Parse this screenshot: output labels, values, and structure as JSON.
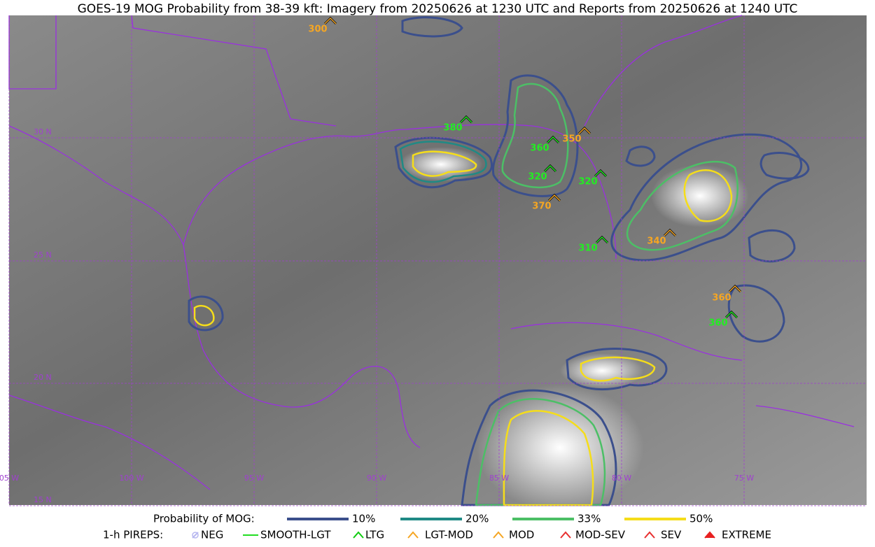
{
  "title": "GOES-19 MOG Probability from 38-39 kft: Imagery from 20250626 at 1230 UTC and Reports from 20250626 at 1240 UTC",
  "lat_labels": [
    "30 N",
    "25 N",
    "20 N",
    "15 N"
  ],
  "lon_labels": [
    "05 W",
    "100 W",
    "95 W",
    "90 W",
    "85 W",
    "80 W",
    "75 W"
  ],
  "reports": [
    {
      "text": "300",
      "color": "#f5a623"
    },
    {
      "text": "380",
      "color": "#22ee22"
    },
    {
      "text": "350",
      "color": "#f5a623"
    },
    {
      "text": "360",
      "color": "#22ee22"
    },
    {
      "text": "320",
      "color": "#22ee22"
    },
    {
      "text": "320",
      "color": "#22ee22"
    },
    {
      "text": "370",
      "color": "#f5a623"
    },
    {
      "text": "310",
      "color": "#22ee22"
    },
    {
      "text": "340",
      "color": "#f5a623"
    },
    {
      "text": "360",
      "color": "#f5a623"
    },
    {
      "text": "360",
      "color": "#22ee22"
    }
  ],
  "legend": {
    "probability_title": "Probability of MOG:",
    "probability": [
      {
        "label": "10%",
        "color": "#3b4f8c"
      },
      {
        "label": "20%",
        "color": "#1f8a85"
      },
      {
        "label": "33%",
        "color": "#4cbf66"
      },
      {
        "label": "50%",
        "color": "#f5dd1a"
      }
    ],
    "pireps_title": "1-h PIREPS:",
    "pireps": [
      {
        "label": "NEG",
        "color": "#b8b8f0"
      },
      {
        "label": "SMOOTH-LGT",
        "color": "#22dd22"
      },
      {
        "label": "LTG",
        "color": "#11cc11"
      },
      {
        "label": "LGT-MOD",
        "color": "#f5a623"
      },
      {
        "label": "MOD",
        "color": "#f5a623"
      },
      {
        "label": "MOD-SEV",
        "color": "#e83030"
      },
      {
        "label": "SEV",
        "color": "#e83030"
      },
      {
        "label": "EXTREME",
        "color": "#e82020"
      }
    ]
  }
}
